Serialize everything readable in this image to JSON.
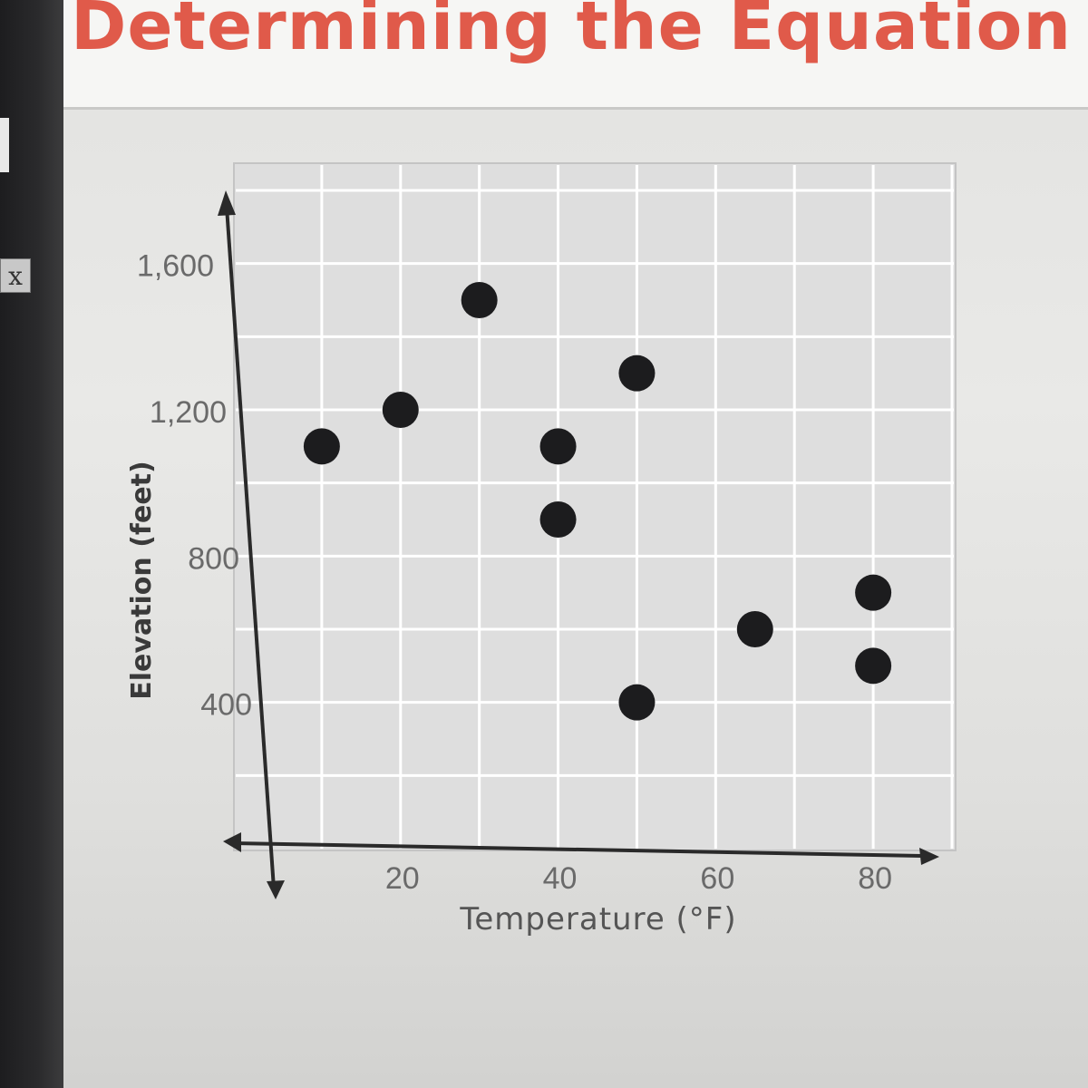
{
  "page": {
    "title": "Determining the Equation of a",
    "side_widget_label": "x"
  },
  "chart_data": {
    "type": "scatter",
    "title": "",
    "xlabel": "Temperature (°F)",
    "ylabel": "Elevation (feet)",
    "x_ticks": [
      20,
      40,
      60,
      80
    ],
    "x_tick_labels": [
      "20",
      "40",
      "60",
      "80"
    ],
    "y_ticks": [
      400,
      800,
      1200,
      1600
    ],
    "y_tick_labels": [
      "400",
      "800",
      "1,200",
      "1,600"
    ],
    "xlim": [
      0,
      90
    ],
    "ylim": [
      0,
      1800
    ],
    "grid": true,
    "points": [
      {
        "x": 10,
        "y": 1100
      },
      {
        "x": 20,
        "y": 1200
      },
      {
        "x": 30,
        "y": 1500
      },
      {
        "x": 40,
        "y": 1100
      },
      {
        "x": 40,
        "y": 900
      },
      {
        "x": 50,
        "y": 1300
      },
      {
        "x": 50,
        "y": 400
      },
      {
        "x": 65,
        "y": 600
      },
      {
        "x": 80,
        "y": 700
      },
      {
        "x": 80,
        "y": 500
      }
    ],
    "colors": {
      "point": "#1c1c1e",
      "grid": "#ffffff",
      "axis": "#2a2a2a",
      "tick_label": "#6a6a6a"
    }
  }
}
